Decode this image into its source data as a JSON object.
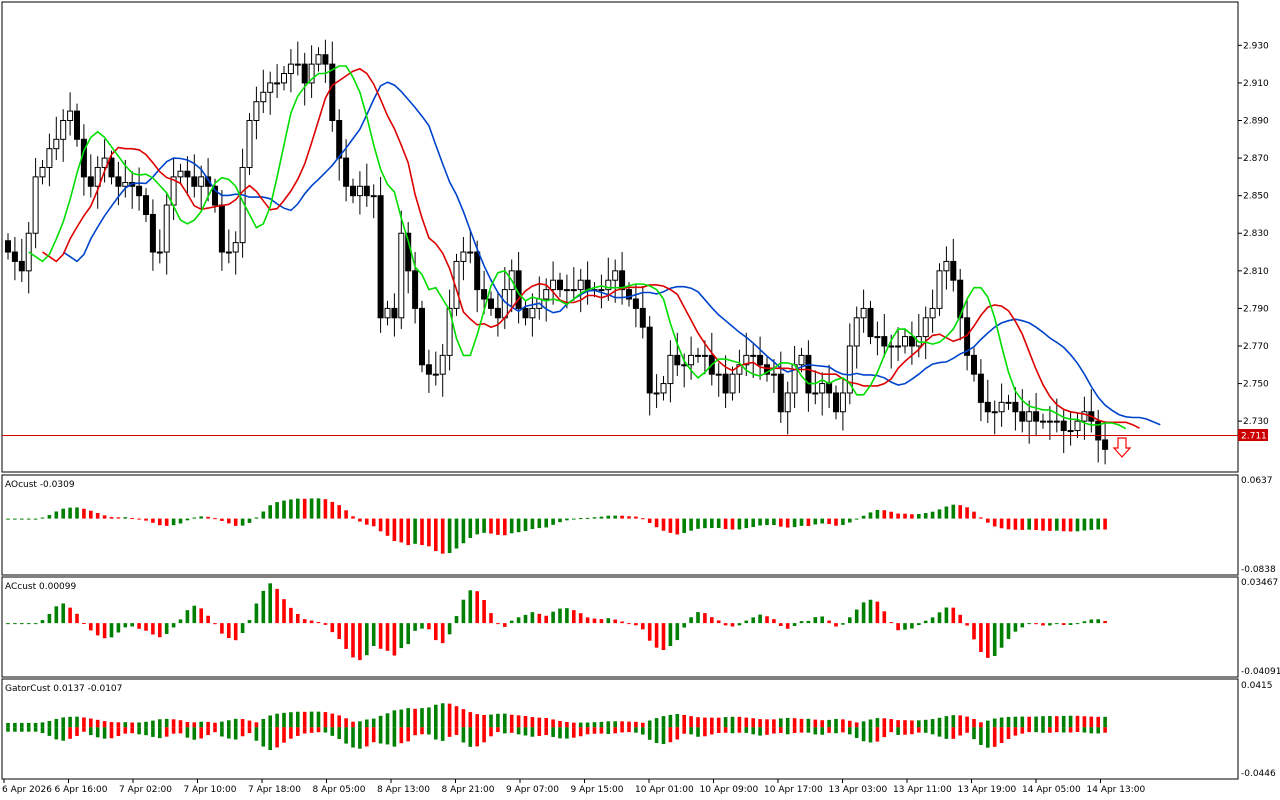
{
  "colors": {
    "bull_bar": "#008000",
    "bear_bar": "#ff0000",
    "ma_green": "#00dd00",
    "ma_red": "#dd0000",
    "ma_blue": "#0044cc",
    "price_line": "#cc0000",
    "fractal": "#9aa0a6",
    "frame": "#000000"
  },
  "main": {
    "price_tag": "2.711",
    "price_levels": [
      "2.930",
      "2.910",
      "2.890",
      "2.870",
      "2.850",
      "2.830",
      "2.810",
      "2.790",
      "2.770",
      "2.750",
      "2.730"
    ],
    "arrow_icon": "down-arrow-icon"
  },
  "panels": {
    "ao": {
      "caption": "AOcust -0.0309",
      "top_label": "0.0637",
      "bottom_label": "-0.0838"
    },
    "ac": {
      "caption": "ACcust 0.00099",
      "top_label": "0.03467",
      "bottom_label": "-0.04091"
    },
    "gator": {
      "caption": "GatorCust 0.0137 -0.0107",
      "top_label": "0.0415",
      "bottom_label": "-0.0446"
    }
  },
  "time_labels": [
    "6 Apr 2026",
    "6 Apr 16:00",
    "7 Apr 02:00",
    "7 Apr 10:00",
    "7 Apr 18:00",
    "8 Apr 05:00",
    "8 Apr 13:00",
    "8 Apr 21:00",
    "9 Apr 07:00",
    "9 Apr 15:00",
    "10 Apr 01:00",
    "10 Apr 09:00",
    "10 Apr 17:00",
    "13 Apr 03:00",
    "13 Apr 11:00",
    "13 Apr 19:00",
    "14 Apr 05:00",
    "14 Apr 13:00"
  ],
  "chart_data": {
    "type": "candlestick",
    "price_range": [
      2.704,
      2.952
    ],
    "current_price": 2.711,
    "closes": [
      2.82,
      2.815,
      2.81,
      2.83,
      2.86,
      2.865,
      2.875,
      2.88,
      2.89,
      2.895,
      2.88,
      2.86,
      2.855,
      2.865,
      2.87,
      2.86,
      2.855,
      2.857,
      2.855,
      2.85,
      2.84,
      2.82,
      2.82,
      2.845,
      2.86,
      2.863,
      2.86,
      2.855,
      2.86,
      2.855,
      2.845,
      2.82,
      2.82,
      2.825,
      2.865,
      2.89,
      2.9,
      2.905,
      2.91,
      2.91,
      2.915,
      2.92,
      2.92,
      2.91,
      2.92,
      2.925,
      2.92,
      2.89,
      2.87,
      2.855,
      2.85,
      2.855,
      2.85,
      2.85,
      2.785,
      2.79,
      2.785,
      2.83,
      2.81,
      2.79,
      2.76,
      2.755,
      2.755,
      2.765,
      2.79,
      2.815,
      2.82,
      2.82,
      2.8,
      2.795,
      2.79,
      2.785,
      2.8,
      2.81,
      2.79,
      2.785,
      2.79,
      2.795,
      2.8,
      2.805,
      2.8,
      2.8,
      2.8,
      2.805,
      2.8,
      2.8,
      2.8,
      2.805,
      2.81,
      2.8,
      2.795,
      2.79,
      2.78,
      2.745,
      2.745,
      2.75,
      2.765,
      2.76,
      2.76,
      2.765,
      2.765,
      2.765,
      2.755,
      2.755,
      2.745,
      2.755,
      2.76,
      2.765,
      2.765,
      2.76,
      2.755,
      2.755,
      2.735,
      2.745,
      2.76,
      2.765,
      2.745,
      2.745,
      2.75,
      2.745,
      2.735,
      2.745,
      2.77,
      2.785,
      2.79,
      2.775,
      2.775,
      2.77,
      2.77,
      2.77,
      2.775,
      2.77,
      2.775,
      2.785,
      2.79,
      2.81,
      2.815,
      2.805,
      2.785,
      2.765,
      2.755,
      2.74,
      2.735,
      2.735,
      2.74,
      2.74,
      2.735,
      2.73,
      2.735,
      2.73,
      2.73,
      2.73,
      2.73,
      2.725,
      2.725,
      2.73,
      2.735,
      2.73,
      2.72,
      2.715
    ],
    "series": [
      {
        "name": "AOcust",
        "type": "histogram",
        "range": [
          -0.0838,
          0.0637
        ],
        "last": -0.0309
      },
      {
        "name": "ACcust",
        "type": "histogram",
        "range": [
          -0.04091,
          0.03467
        ],
        "last": 0.00099
      },
      {
        "name": "GatorCust",
        "type": "histogram",
        "range": [
          -0.0446,
          0.0415
        ],
        "last": [
          0.0137,
          -0.0107
        ]
      }
    ]
  }
}
